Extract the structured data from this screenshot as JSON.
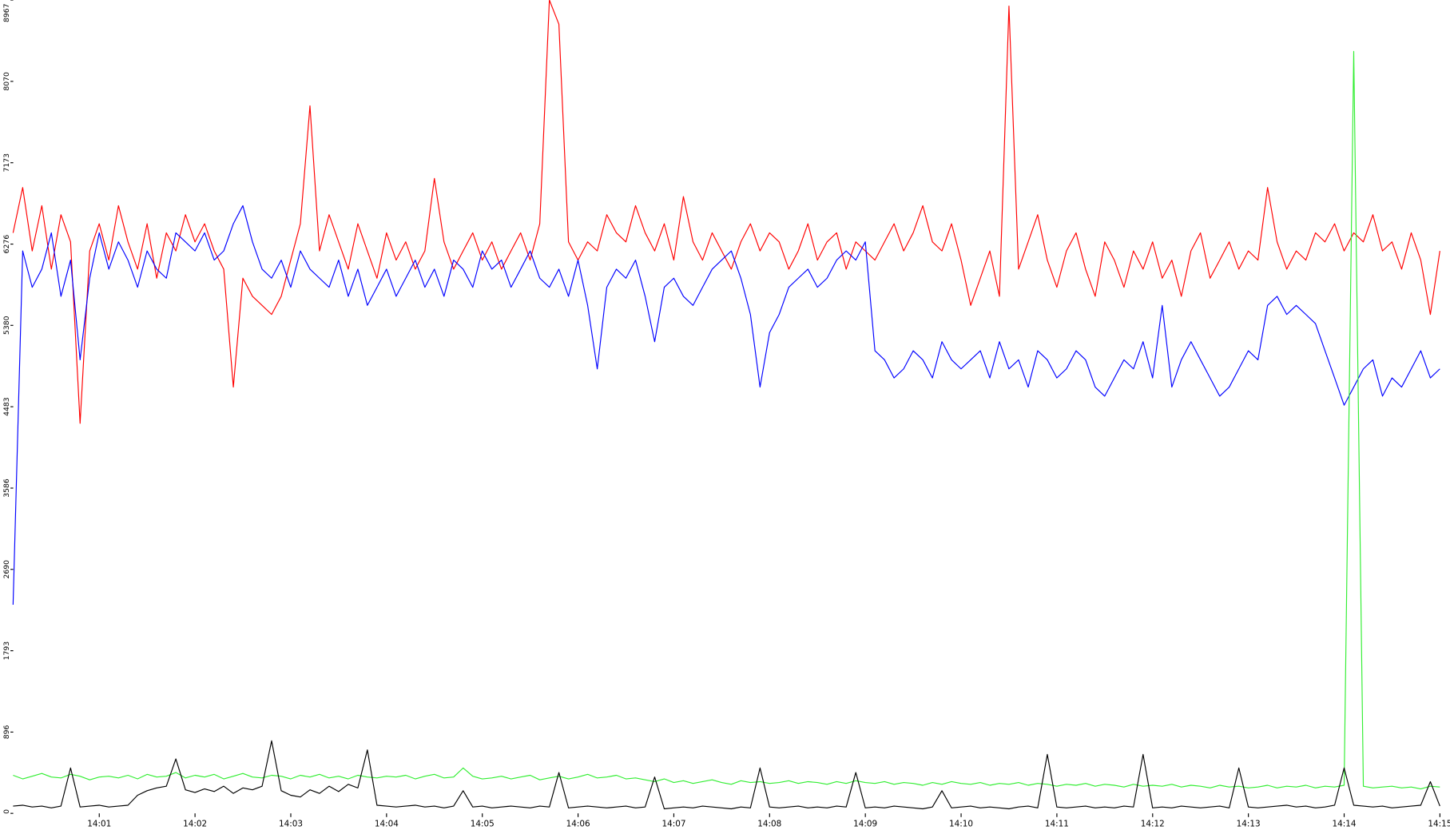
{
  "chart_data": {
    "type": "line",
    "categories": [
      null,
      null,
      null,
      null,
      null,
      null,
      null,
      null,
      null,
      "14:01",
      null,
      null,
      null,
      null,
      null,
      null,
      null,
      null,
      null,
      "14:02",
      null,
      null,
      null,
      null,
      null,
      null,
      null,
      null,
      null,
      "14:03",
      null,
      null,
      null,
      null,
      null,
      null,
      null,
      null,
      null,
      "14:04",
      null,
      null,
      null,
      null,
      null,
      null,
      null,
      null,
      null,
      "14:05",
      null,
      null,
      null,
      null,
      null,
      null,
      null,
      null,
      null,
      "14:06",
      null,
      null,
      null,
      null,
      null,
      null,
      null,
      null,
      null,
      "14:07",
      null,
      null,
      null,
      null,
      null,
      null,
      null,
      null,
      null,
      "14:08",
      null,
      null,
      null,
      null,
      null,
      null,
      null,
      null,
      null,
      "14:09",
      null,
      null,
      null,
      null,
      null,
      null,
      null,
      null,
      null,
      "14:10",
      null,
      null,
      null,
      null,
      null,
      null,
      null,
      null,
      null,
      "14:11",
      null,
      null,
      null,
      null,
      null,
      null,
      null,
      null,
      null,
      "14:12",
      null,
      null,
      null,
      null,
      null,
      null,
      null,
      null,
      null,
      "14:13",
      null,
      null,
      null,
      null,
      null,
      null,
      null,
      null,
      null,
      "14:14",
      null,
      null,
      null,
      null,
      null,
      null,
      null,
      null,
      null,
      "14:15"
    ],
    "series": [
      {
        "color": "#ff0000",
        "values": [
          6400,
          6900,
          6200,
          6700,
          6000,
          6600,
          6300,
          4300,
          6200,
          6500,
          6100,
          6700,
          6300,
          6000,
          6500,
          5900,
          6400,
          6200,
          6600,
          6300,
          6500,
          6200,
          6000,
          4700,
          5900,
          5700,
          5600,
          5500,
          5700,
          6100,
          6500,
          7800,
          6200,
          6600,
          6300,
          6000,
          6500,
          6200,
          5900,
          6400,
          6100,
          6300,
          6000,
          6200,
          7000,
          6300,
          6000,
          6200,
          6400,
          6100,
          6300,
          6000,
          6200,
          6400,
          6100,
          6500,
          8967,
          8700,
          6300,
          6100,
          6300,
          6200,
          6600,
          6400,
          6300,
          6700,
          6400,
          6200,
          6500,
          6100,
          6800,
          6300,
          6100,
          6400,
          6200,
          6000,
          6300,
          6500,
          6200,
          6400,
          6300,
          6000,
          6200,
          6500,
          6100,
          6300,
          6400,
          6000,
          6300,
          6200,
          6100,
          6300,
          6500,
          6200,
          6400,
          6700,
          6300,
          6200,
          6500,
          6100,
          5600,
          5900,
          6200,
          5700,
          8900,
          6000,
          6300,
          6600,
          6100,
          5800,
          6200,
          6400,
          6000,
          5700,
          6300,
          6100,
          5800,
          6200,
          6000,
          6300,
          5900,
          6100,
          5700,
          6200,
          6400,
          5900,
          6100,
          6300,
          6000,
          6200,
          6100,
          6900,
          6300,
          6000,
          6200,
          6100,
          6400,
          6300,
          6500,
          6200,
          6400,
          6300,
          6600,
          6200,
          6300,
          6000,
          6400,
          6100,
          5500,
          6200
        ]
      },
      {
        "color": "#0000ff",
        "values": [
          2300,
          6200,
          5800,
          6000,
          6400,
          5700,
          6100,
          5000,
          5900,
          6400,
          6000,
          6300,
          6100,
          5800,
          6200,
          6000,
          5900,
          6400,
          6300,
          6200,
          6400,
          6100,
          6200,
          6500,
          6700,
          6300,
          6000,
          5900,
          6100,
          5800,
          6200,
          6000,
          5900,
          5800,
          6100,
          5700,
          6000,
          5600,
          5800,
          6000,
          5700,
          5900,
          6100,
          5800,
          6000,
          5700,
          6100,
          6000,
          5800,
          6200,
          6000,
          6100,
          5800,
          6000,
          6200,
          5900,
          5800,
          6000,
          5700,
          6100,
          5600,
          4900,
          5800,
          6000,
          5900,
          6100,
          5700,
          5200,
          5800,
          5900,
          5700,
          5600,
          5800,
          6000,
          6100,
          6200,
          5900,
          5500,
          4700,
          5300,
          5500,
          5800,
          5900,
          6000,
          5800,
          5900,
          6100,
          6200,
          6100,
          6300,
          5100,
          5000,
          4800,
          4900,
          5100,
          5000,
          4800,
          5200,
          5000,
          4900,
          5000,
          5100,
          4800,
          5200,
          4900,
          5000,
          4700,
          5100,
          5000,
          4800,
          4900,
          5100,
          5000,
          4700,
          4600,
          4800,
          5000,
          4900,
          5200,
          4800,
          5600,
          4700,
          5000,
          5200,
          5000,
          4800,
          4600,
          4700,
          4900,
          5100,
          5000,
          5600,
          5700,
          5500,
          5600,
          5500,
          5400,
          5100,
          4800,
          4500,
          4700,
          4900,
          5000,
          4600,
          4800,
          4700,
          4900,
          5100,
          4800,
          4900
        ]
      },
      {
        "color": "#33ee33",
        "values": [
          420,
          380,
          410,
          440,
          400,
          390,
          430,
          410,
          370,
          400,
          410,
          390,
          420,
          380,
          430,
          400,
          410,
          450,
          390,
          420,
          400,
          430,
          380,
          410,
          440,
          400,
          390,
          420,
          410,
          380,
          420,
          400,
          430,
          390,
          410,
          380,
          420,
          400,
          390,
          410,
          400,
          420,
          380,
          410,
          430,
          390,
          400,
          500,
          410,
          380,
          390,
          410,
          380,
          400,
          420,
          370,
          390,
          410,
          380,
          400,
          430,
          390,
          400,
          420,
          380,
          390,
          370,
          350,
          380,
          340,
          360,
          330,
          350,
          370,
          340,
          320,
          360,
          340,
          350,
          330,
          340,
          360,
          330,
          350,
          340,
          320,
          350,
          330,
          360,
          340,
          330,
          350,
          320,
          340,
          330,
          310,
          340,
          320,
          350,
          330,
          320,
          340,
          310,
          330,
          320,
          340,
          310,
          330,
          320,
          300,
          320,
          310,
          330,
          300,
          320,
          310,
          290,
          320,
          300,
          310,
          300,
          320,
          290,
          310,
          300,
          280,
          310,
          290,
          300,
          280,
          290,
          310,
          280,
          300,
          290,
          310,
          280,
          300,
          290,
          310,
          8400,
          300,
          280,
          290,
          300,
          280,
          290,
          270,
          300,
          290
        ]
      },
      {
        "color": "#000000",
        "values": [
          80,
          90,
          70,
          80,
          60,
          80,
          500,
          70,
          80,
          90,
          70,
          80,
          90,
          200,
          250,
          280,
          300,
          600,
          260,
          230,
          270,
          240,
          300,
          220,
          280,
          260,
          300,
          800,
          250,
          200,
          180,
          260,
          220,
          300,
          240,
          320,
          280,
          700,
          90,
          80,
          70,
          80,
          90,
          70,
          80,
          60,
          80,
          250,
          70,
          80,
          60,
          70,
          80,
          70,
          60,
          80,
          70,
          450,
          60,
          70,
          80,
          70,
          60,
          70,
          80,
          60,
          70,
          400,
          50,
          60,
          70,
          60,
          80,
          70,
          60,
          50,
          70,
          60,
          500,
          70,
          60,
          70,
          80,
          60,
          70,
          60,
          80,
          70,
          450,
          60,
          70,
          60,
          80,
          70,
          60,
          50,
          70,
          250,
          60,
          70,
          80,
          60,
          70,
          60,
          50,
          70,
          80,
          60,
          650,
          70,
          60,
          70,
          80,
          60,
          70,
          60,
          80,
          70,
          650,
          60,
          70,
          60,
          80,
          70,
          60,
          70,
          80,
          60,
          500,
          70,
          60,
          70,
          80,
          90,
          70,
          80,
          60,
          70,
          90,
          500,
          90,
          80,
          70,
          80,
          60,
          70,
          80,
          90,
          350,
          80
        ]
      }
    ],
    "ylim": [
      0,
      8967
    ],
    "yticks": [
      0,
      896,
      1793,
      2690,
      3586,
      4483,
      5380,
      6276,
      7173,
      8070,
      8967
    ]
  }
}
